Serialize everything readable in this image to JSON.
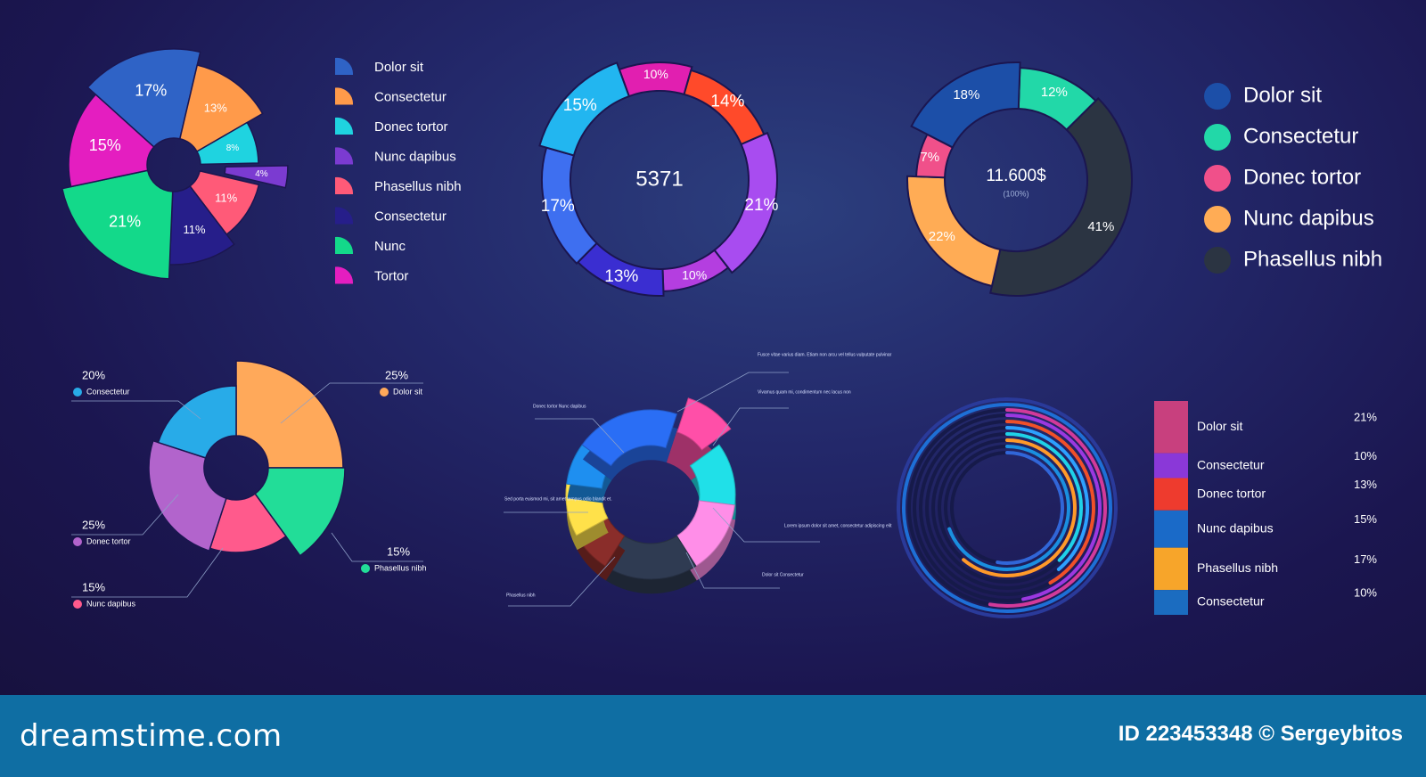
{
  "colors": {
    "background": "#1b1650",
    "footer": "#0f6ea3"
  },
  "chart_data": [
    {
      "type": "pie",
      "labels": [
        "17%",
        "13%",
        "8%",
        "4%",
        "11%",
        "11%",
        "21%",
        "15%"
      ],
      "values": [
        17,
        13,
        8,
        4,
        11,
        11,
        21,
        15
      ],
      "colors": [
        "#2f63c6",
        "#ff9a4a",
        "#1fd3e0",
        "#7b3bd1",
        "#ff5a78",
        "#261e8a",
        "#13d98a",
        "#e41ec0"
      ],
      "legend": {
        "entries": [
          "Dolor sit",
          "Consectetur",
          "Donec tortor",
          "Nunc dapibus",
          "Phasellus nibh",
          "Consectetur",
          "Nunc",
          "Tortor"
        ],
        "colors": [
          "#2f63c6",
          "#ff9a4a",
          "#1fd3e0",
          "#7b3bd1",
          "#ff5a78",
          "#261e8a",
          "#13d98a",
          "#e41ec0"
        ],
        "placement": "right"
      }
    },
    {
      "type": "pie",
      "center_text": "5371",
      "labels": [
        "10%",
        "14%",
        "21%",
        "10%",
        "13%",
        "17%",
        "15%"
      ],
      "values": [
        10,
        14,
        21,
        10,
        13,
        17,
        15
      ],
      "colors": [
        "#e11fb0",
        "#ff4a2a",
        "#a84cf0",
        "#b43ee0",
        "#3a2ed1",
        "#3e6ff0",
        "#22b6f0"
      ]
    },
    {
      "type": "pie",
      "center_text": "11.600$",
      "center_subtext": "(100%)",
      "labels": [
        "12%",
        "41%",
        "22%",
        "7%",
        "18%"
      ],
      "values": [
        12,
        41,
        22,
        7,
        18
      ],
      "colors": [
        "#22d8a8",
        "#2b3442",
        "#ffac55",
        "#f0508a",
        "#1c4fa8"
      ],
      "legend": {
        "entries": [
          "Dolor sit",
          "Consectetur",
          "Donec tortor",
          "Nunc dapibus",
          "Phasellus nibh"
        ],
        "colors": [
          "#1c4fa8",
          "#22d8a8",
          "#f0508a",
          "#ffac55",
          "#2b3442"
        ],
        "placement": "right"
      }
    },
    {
      "type": "pie",
      "values": [
        25,
        15,
        15,
        25,
        20
      ],
      "colors": [
        "#ffa95a",
        "#22dd98",
        "#ff5a8c",
        "#b264cc",
        "#28abe8"
      ],
      "callouts": [
        {
          "value": "20%",
          "label": "Consectetur",
          "color": "#28abe8"
        },
        {
          "value": "25%",
          "label": "Dolor sit",
          "color": "#ffa95a"
        },
        {
          "value": "25%",
          "label": "Donec tortor",
          "color": "#b264cc"
        },
        {
          "value": "15%",
          "label": "Phasellus nibh",
          "color": "#22dd98"
        },
        {
          "value": "15%",
          "label": "Nunc dapibus",
          "color": "#ff5a8c"
        }
      ]
    },
    {
      "type": "pie",
      "values": [
        10,
        12,
        14,
        18,
        8,
        10,
        8,
        20
      ],
      "colors": [
        "#ff4fa8",
        "#20e0e8",
        "#ff8ee8",
        "#2f3b52",
        "#8a2d2a",
        "#ffe14a",
        "#1e8ff0",
        "#2a6ef5"
      ],
      "callouts": [
        {
          "text": "Fusce vitae varius diam. Etiam non arcu vel tellus vulputate pulvinar"
        },
        {
          "text": "Vivamus quam mi, condimentum nec lacus non"
        },
        {
          "text": "Lorem ipsum dolor sit amet, consectetur adipiscing elit"
        },
        {
          "text": "Dolor sit Consectetur"
        },
        {
          "text": "Phasellus nibh"
        },
        {
          "text": "Sed porta euismod mi, sit amet tempus odio blandit et."
        },
        {
          "text": "Donec tortor Nunc dapibus"
        }
      ]
    },
    {
      "type": "bar",
      "orientation": "radial",
      "categories": [
        "Dolor sit",
        "Consectetur",
        "Donec tortor",
        "Nunc dapibus",
        "Phasellus nibh",
        "Consectetur"
      ],
      "values": [
        21,
        10,
        13,
        15,
        17,
        10
      ],
      "labels": [
        "21%",
        "10%",
        "13%",
        "15%",
        "17%",
        "10%"
      ],
      "colors": [
        "#c8407e",
        "#8a38d8",
        "#ee3b2e",
        "#1a6ac8",
        "#f7a52a",
        "#1b6cc0"
      ]
    }
  ],
  "footer": {
    "brand": "dreamstime.com",
    "credit": "ID 223453348 © Sergeybitos"
  }
}
